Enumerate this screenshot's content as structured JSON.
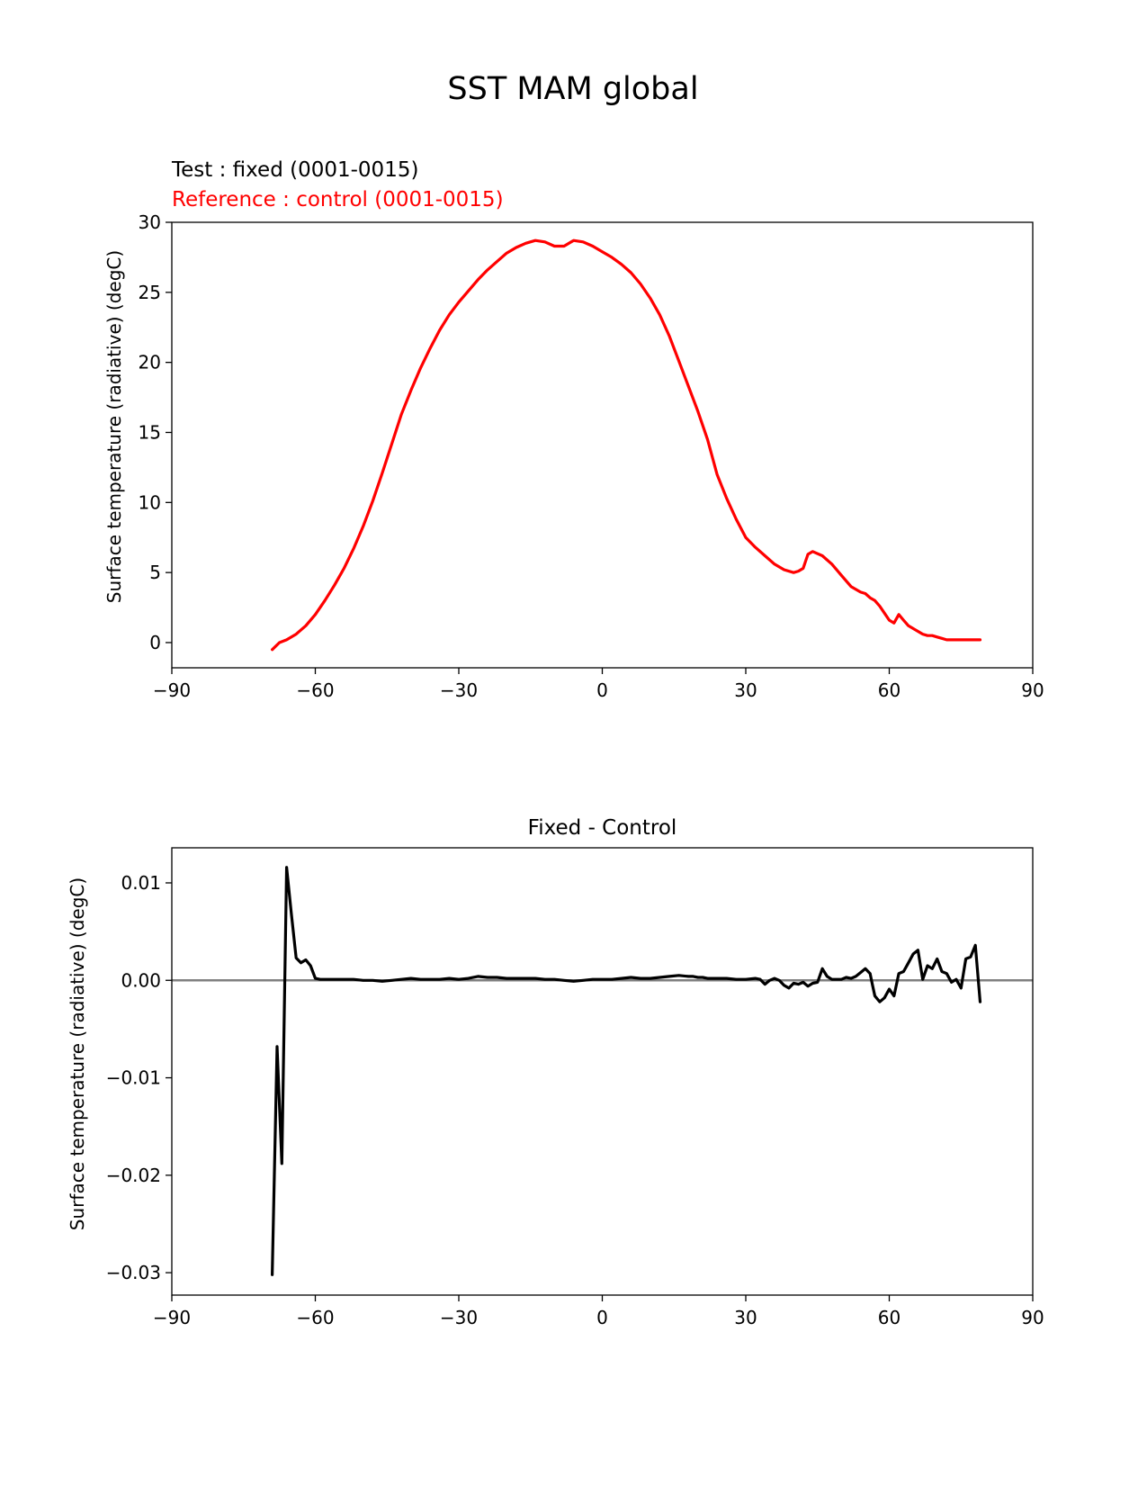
{
  "figure": {
    "title": "SST MAM global"
  },
  "chart_data": [
    {
      "type": "line",
      "test_label": "Test : fixed (0001-0015)",
      "reference_label": "Reference : control (0001-0015)",
      "ylabel": "Surface temperature (radiative) (degC)",
      "xlim": [
        -90,
        90
      ],
      "ylim": [
        -1.8,
        30
      ],
      "xticks": [
        -90,
        -60,
        -30,
        0,
        30,
        60,
        90
      ],
      "xtick_labels": [
        "−90",
        "−60",
        "−30",
        "0",
        "30",
        "60",
        "90"
      ],
      "yticks": [
        0,
        5,
        10,
        15,
        20,
        25,
        30
      ],
      "ytick_labels": [
        "0",
        "5",
        "10",
        "15",
        "20",
        "25",
        "30"
      ],
      "grid": false,
      "colors": {
        "test": "#000000",
        "reference": "#ff0000"
      },
      "series": [
        {
          "name": "Reference : control (0001-0015)",
          "color": "#ff0000",
          "x": [
            -69,
            -67.5,
            -66,
            -64,
            -62,
            -60,
            -58,
            -56,
            -54,
            -52,
            -50,
            -48,
            -46,
            -44,
            -42,
            -40,
            -38,
            -36,
            -34,
            -32,
            -30,
            -28,
            -26,
            -24,
            -22,
            -20,
            -18,
            -16,
            -14,
            -12,
            -10,
            -8,
            -6,
            -4,
            -2,
            0,
            2,
            4,
            6,
            8,
            10,
            12,
            14,
            16,
            18,
            20,
            22,
            24,
            26,
            28,
            30,
            32,
            34,
            36,
            38,
            40,
            41,
            42,
            43,
            44,
            46,
            48,
            50,
            52,
            54,
            55,
            56,
            57,
            58,
            59,
            60,
            61,
            62,
            63,
            64,
            65,
            66,
            67,
            68,
            69,
            70,
            71,
            72,
            73,
            74,
            75,
            76,
            77,
            78,
            79
          ],
          "y": [
            -0.5,
            0,
            0.2,
            0.6,
            1.2,
            2.0,
            3.0,
            4.1,
            5.3,
            6.7,
            8.3,
            10.1,
            12.1,
            14.2,
            16.3,
            18.0,
            19.6,
            21.0,
            22.3,
            23.4,
            24.3,
            25.1,
            25.9,
            26.6,
            27.2,
            27.8,
            28.2,
            28.5,
            28.7,
            28.6,
            28.3,
            28.3,
            28.7,
            28.6,
            28.3,
            27.9,
            27.5,
            27.0,
            26.4,
            25.6,
            24.6,
            23.4,
            21.9,
            20.1,
            18.3,
            16.5,
            14.5,
            12.0,
            10.3,
            8.8,
            7.5,
            6.8,
            6.2,
            5.6,
            5.2,
            5.0,
            5.1,
            5.3,
            6.3,
            6.5,
            6.2,
            5.6,
            4.8,
            4.0,
            3.6,
            3.5,
            3.2,
            3.0,
            2.6,
            2.1,
            1.6,
            1.4,
            2.0,
            1.6,
            1.2,
            1.0,
            0.8,
            0.6,
            0.5,
            0.5,
            0.4,
            0.3,
            0.2,
            0.2,
            0.2,
            0.2,
            0.2,
            0.2,
            0.2,
            0.2
          ]
        },
        {
          "name": "Test : fixed (0001-0015)",
          "color": "#000000",
          "x": [],
          "y": []
        }
      ]
    },
    {
      "type": "line",
      "title": "Fixed - Control",
      "ylabel": "Surface temperature (radiative) (degC)",
      "xlim": [
        -90,
        90
      ],
      "ylim": [
        -0.0323,
        0.0136
      ],
      "xticks": [
        -90,
        -60,
        -30,
        0,
        30,
        60,
        90
      ],
      "xtick_labels": [
        "−90",
        "−60",
        "−30",
        "0",
        "30",
        "60",
        "90"
      ],
      "yticks": [
        -0.03,
        -0.02,
        -0.01,
        0.0,
        0.01
      ],
      "ytick_labels": [
        "−0.03",
        "−0.02",
        "−0.01",
        "0.00",
        "0.01"
      ],
      "zero_line_color": "#808080",
      "grid": false,
      "series": [
        {
          "name": "Fixed - Control",
          "color": "#000000",
          "x": [
            -69,
            -68,
            -67,
            -66,
            -65,
            -64,
            -63,
            -62,
            -61,
            -60,
            -59,
            -58,
            -56,
            -54,
            -52,
            -50,
            -48,
            -46,
            -44,
            -42,
            -40,
            -38,
            -36,
            -34,
            -32,
            -30,
            -28,
            -26,
            -24,
            -22,
            -20,
            -18,
            -16,
            -14,
            -12,
            -10,
            -8,
            -6,
            -4,
            -2,
            0,
            2,
            4,
            6,
            8,
            10,
            12,
            14,
            16,
            18,
            19,
            20,
            21,
            22,
            24,
            26,
            28,
            30,
            32,
            33,
            34,
            35,
            36,
            37,
            38,
            39,
            40,
            41,
            42,
            43,
            44,
            45,
            46,
            47,
            48,
            49,
            50,
            51,
            52,
            53,
            54,
            55,
            56,
            56.5,
            57,
            58,
            59,
            60,
            61,
            62,
            63,
            64,
            65,
            66,
            67,
            68,
            69,
            70,
            71,
            72,
            73,
            74,
            75,
            76,
            77,
            78,
            79
          ],
          "y": [
            -0.0302,
            -0.0068,
            -0.0188,
            0.0116,
            0.0068,
            0.0023,
            0.0018,
            0.0021,
            0.0015,
            0.0002,
            0.0001,
            0.0001,
            0.0001,
            0.0001,
            0.0001,
            0.0,
            0.0,
            -0.0001,
            0.0,
            0.0001,
            0.0002,
            0.0001,
            0.0001,
            0.0001,
            0.0002,
            0.0001,
            0.0002,
            0.0004,
            0.0003,
            0.0003,
            0.0002,
            0.0002,
            0.0002,
            0.0002,
            0.0001,
            0.0001,
            0.0,
            -0.0001,
            0.0,
            0.0001,
            0.0001,
            0.0001,
            0.0002,
            0.0003,
            0.0002,
            0.0002,
            0.0003,
            0.0004,
            0.0005,
            0.0004,
            0.0004,
            0.0003,
            0.0003,
            0.0002,
            0.0002,
            0.0002,
            0.0001,
            0.0001,
            0.0002,
            0.0001,
            -0.0004,
            0.0,
            0.0002,
            0.0,
            -0.0005,
            -0.0008,
            -0.0003,
            -0.0004,
            -0.0002,
            -0.0006,
            -0.0003,
            -0.0002,
            0.0012,
            0.0004,
            0.0001,
            0.0001,
            0.0001,
            0.0003,
            0.0002,
            0.0004,
            0.0008,
            0.0012,
            0.0007,
            -0.0005,
            -0.0016,
            -0.0022,
            -0.0018,
            -0.0009,
            -0.0016,
            0.0007,
            0.0009,
            0.0018,
            0.0027,
            0.0031,
            0.0001,
            0.0015,
            0.0012,
            0.0022,
            0.0009,
            0.0007,
            -0.0002,
            0.0001,
            -0.0008,
            0.0022,
            0.0024,
            0.0036,
            -0.0022
          ]
        }
      ]
    }
  ]
}
